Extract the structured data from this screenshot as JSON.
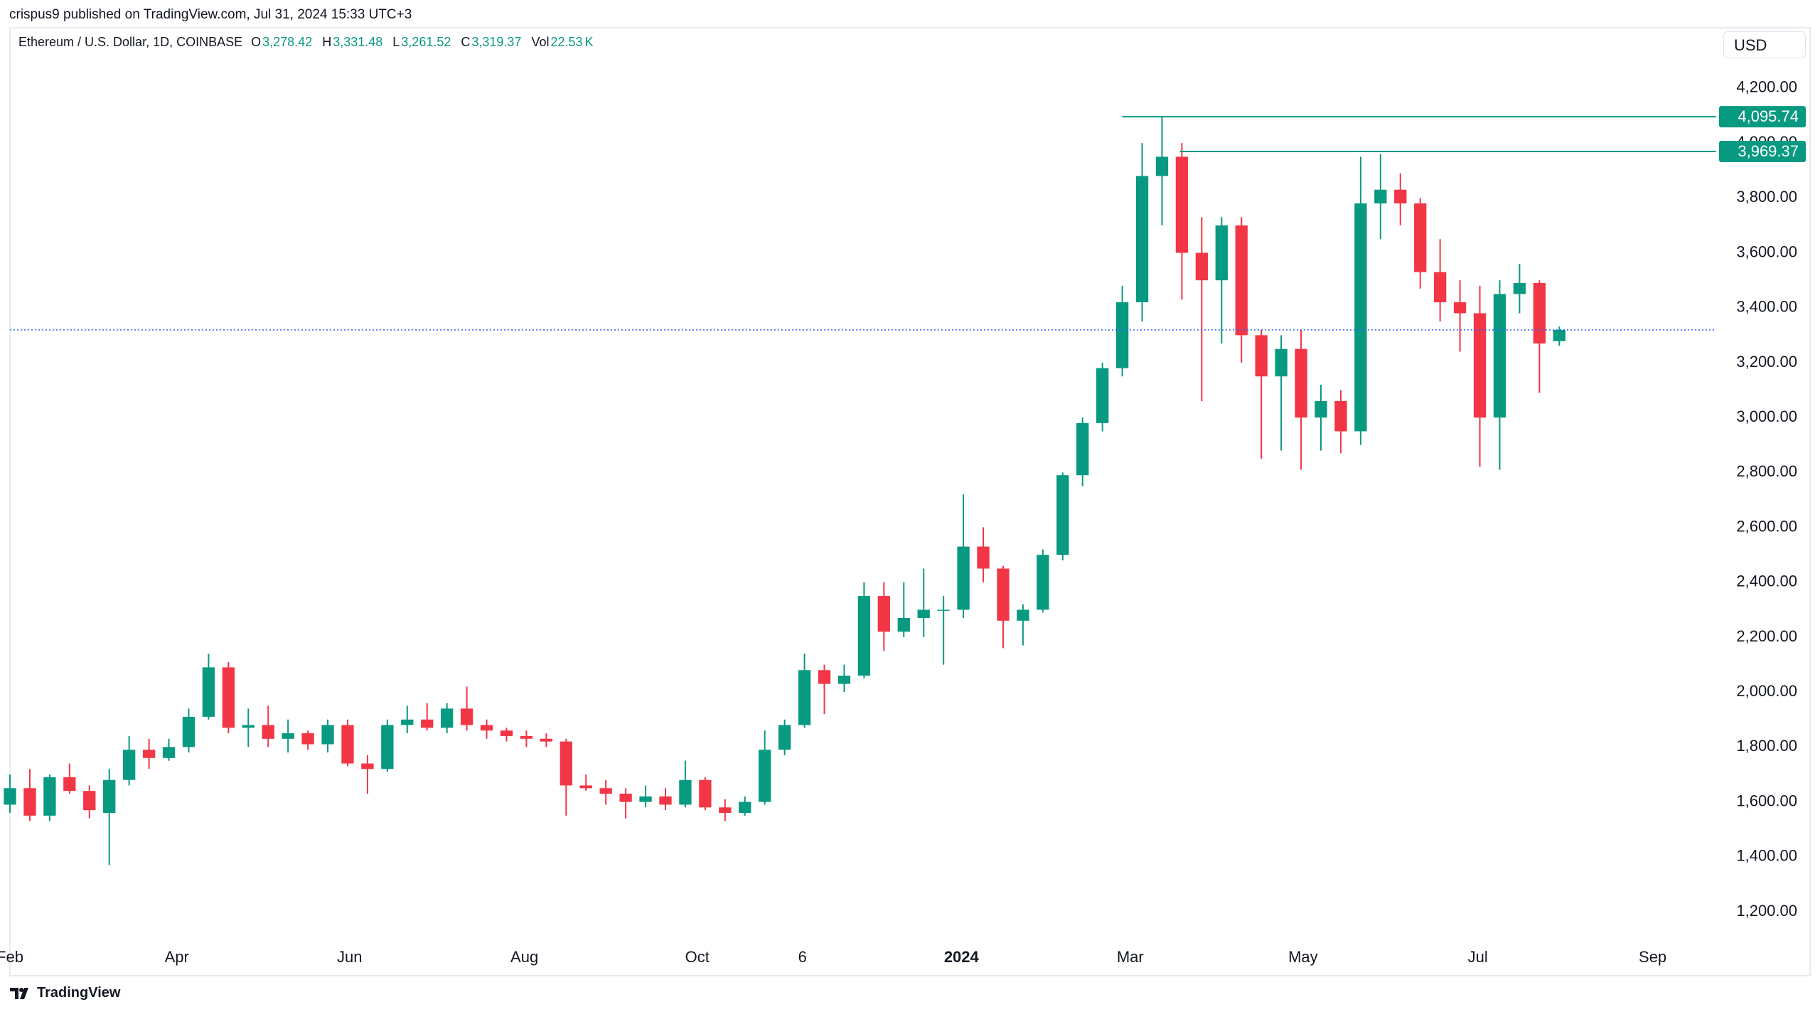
{
  "header": {
    "published": "crispus9 published on TradingView.com, Jul 31, 2024 15:33 UTC+3"
  },
  "footer": {
    "brand": "TradingView"
  },
  "chart_data": {
    "type": "candlestick",
    "symbol": "Ethereum / U.S. Dollar, 1D, COINBASE",
    "legend": [
      {
        "name": "O",
        "text": "3,278.42"
      },
      {
        "name": "H",
        "text": "3,331.48"
      },
      {
        "name": "L",
        "text": "3,261.52"
      },
      {
        "name": "C",
        "text": "3,319.37"
      },
      {
        "name": "Vol",
        "text": "22.53",
        "unit": "K"
      }
    ],
    "currency": "USD",
    "up_color": "#089981",
    "down_color": "#f23645",
    "x": [
      0,
      1,
      2,
      3,
      4,
      5,
      6,
      7,
      8,
      9,
      10,
      11,
      12,
      13,
      14,
      15,
      16,
      17,
      18,
      19,
      20,
      21,
      22,
      23,
      24,
      25,
      26,
      27,
      28,
      29,
      30,
      31,
      32,
      33,
      34,
      35,
      36,
      37,
      38,
      39,
      40,
      41,
      42,
      43,
      44,
      45,
      46,
      47,
      48,
      49,
      50,
      51,
      52,
      53,
      54,
      55,
      56,
      57,
      58,
      59,
      60,
      61,
      62,
      63,
      64,
      65,
      66,
      67,
      68,
      69,
      70,
      71,
      72,
      73,
      74,
      75,
      76,
      77,
      78
    ],
    "open": [
      1590,
      1650,
      1550,
      1690,
      1640,
      1560,
      1680,
      1790,
      1760,
      1800,
      1910,
      2090,
      1870,
      1880,
      1830,
      1850,
      1810,
      1880,
      1740,
      1720,
      1880,
      1900,
      1870,
      1940,
      1880,
      1860,
      1840,
      1830,
      1820,
      1660,
      1650,
      1630,
      1600,
      1620,
      1590,
      1680,
      1580,
      1560,
      1600,
      1790,
      1880,
      2080,
      2030,
      2060,
      2350,
      2220,
      2270,
      2300,
      2300,
      2530,
      2450,
      2260,
      2300,
      2500,
      2790,
      2980,
      3180,
      3420,
      3880,
      3950,
      3600,
      3500,
      3700,
      3300,
      3150,
      3250,
      3000,
      3060,
      2950,
      3780,
      3830,
      3780,
      3530,
      3420,
      3380,
      3000,
      3450,
      3490,
      3278.42
    ],
    "high": [
      1700,
      1720,
      1700,
      1740,
      1660,
      1720,
      1840,
      1830,
      1830,
      1940,
      2140,
      2110,
      1940,
      1950,
      1900,
      1860,
      1900,
      1900,
      1770,
      1900,
      1950,
      1960,
      1960,
      2020,
      1900,
      1870,
      1860,
      1850,
      1830,
      1700,
      1680,
      1650,
      1660,
      1650,
      1750,
      1690,
      1610,
      1620,
      1860,
      1900,
      2140,
      2100,
      2100,
      2400,
      2400,
      2400,
      2450,
      2350,
      2720,
      2600,
      2460,
      2320,
      2520,
      2800,
      3000,
      3200,
      3480,
      4000,
      4093,
      4000,
      3730,
      3730,
      3730,
      3320,
      3300,
      3320,
      3120,
      3100,
      3950,
      3960,
      3890,
      3800,
      3650,
      3500,
      3480,
      3500,
      3560,
      3500,
      3331.48
    ],
    "low": [
      1560,
      1530,
      1530,
      1630,
      1540,
      1370,
      1660,
      1720,
      1750,
      1780,
      1900,
      1850,
      1800,
      1800,
      1780,
      1790,
      1780,
      1730,
      1630,
      1710,
      1850,
      1860,
      1850,
      1860,
      1830,
      1820,
      1800,
      1800,
      1550,
      1640,
      1590,
      1540,
      1580,
      1570,
      1580,
      1570,
      1530,
      1550,
      1590,
      1770,
      1870,
      1920,
      2000,
      2050,
      2150,
      2200,
      2200,
      2100,
      2270,
      2400,
      2160,
      2170,
      2290,
      2480,
      2750,
      2950,
      3150,
      3350,
      3700,
      3430,
      3060,
      3270,
      3200,
      2850,
      2880,
      2810,
      2880,
      2870,
      2900,
      3650,
      3700,
      3470,
      3350,
      3240,
      2820,
      2810,
      3380,
      3090,
      3261.52
    ],
    "close": [
      1650,
      1550,
      1690,
      1640,
      1570,
      1680,
      1790,
      1760,
      1800,
      1910,
      2090,
      1870,
      1880,
      1830,
      1850,
      1810,
      1880,
      1740,
      1720,
      1880,
      1900,
      1870,
      1940,
      1880,
      1860,
      1840,
      1830,
      1820,
      1660,
      1650,
      1630,
      1600,
      1620,
      1590,
      1680,
      1580,
      1560,
      1600,
      1790,
      1880,
      2080,
      2030,
      2060,
      2350,
      2220,
      2270,
      2300,
      2300,
      2530,
      2450,
      2260,
      2300,
      2500,
      2790,
      2980,
      3180,
      3420,
      3880,
      3950,
      3600,
      3500,
      3700,
      3300,
      3150,
      3250,
      3000,
      3060,
      2950,
      3780,
      3830,
      3780,
      3530,
      3420,
      3380,
      3000,
      3450,
      3490,
      3270,
      3319.37
    ],
    "xlim": [
      0,
      85.9
    ],
    "xticks": [
      {
        "value": 0,
        "label": "Feb"
      },
      {
        "value": 8.4,
        "label": "Apr"
      },
      {
        "value": 17.1,
        "label": "Jun"
      },
      {
        "value": 25.9,
        "label": "Aug"
      },
      {
        "value": 34.6,
        "label": "Oct"
      },
      {
        "value": 39.9,
        "label": "6"
      },
      {
        "value": 47.9,
        "label": "2024",
        "bold": true
      },
      {
        "value": 56.4,
        "label": "Mar"
      },
      {
        "value": 65.1,
        "label": "May"
      },
      {
        "value": 73.9,
        "label": "Jul"
      },
      {
        "value": 82.7,
        "label": "Sep"
      }
    ],
    "ylim": [
      1086,
      4420
    ],
    "yticks": [
      {
        "value": 1200,
        "label": "1,200.00"
      },
      {
        "value": 1400,
        "label": "1,400.00"
      },
      {
        "value": 1600,
        "label": "1,600.00"
      },
      {
        "value": 1800,
        "label": "1,800.00"
      },
      {
        "value": 2000,
        "label": "2,000.00"
      },
      {
        "value": 2200,
        "label": "2,200.00"
      },
      {
        "value": 2400,
        "label": "2,400.00"
      },
      {
        "value": 2600,
        "label": "2,600.00"
      },
      {
        "value": 2800,
        "label": "2,800.00"
      },
      {
        "value": 3000,
        "label": "3,000.00"
      },
      {
        "value": 3200,
        "label": "3,200.00"
      },
      {
        "value": 3400,
        "label": "3,400.00"
      },
      {
        "value": 3600,
        "label": "3,600.00"
      },
      {
        "value": 3800,
        "label": "3,800.00"
      },
      {
        "value": 4000,
        "label": "4,000.00"
      },
      {
        "value": 4200,
        "label": "4,200.00"
      }
    ],
    "levels": [
      {
        "value": 4095.74,
        "label": "4,095.74",
        "from": 56
      },
      {
        "value": 3969.37,
        "label": "3,969.37",
        "from": 58.9
      }
    ],
    "level_color": "#089981",
    "last_price_line_color": "#2962ff"
  }
}
